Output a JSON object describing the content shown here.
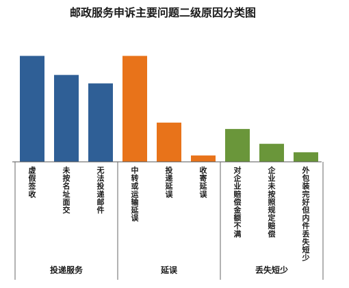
{
  "chart_data": {
    "type": "bar",
    "title": "邮政服务申诉主要问题二级原因分类图",
    "categories": [
      "虚假签收",
      "未按名址面交",
      "无法投递邮件",
      "中转或运输延误",
      "投递延误",
      "收寄延误",
      "对企业赔偿金额不满",
      "企业未按照规定赔偿",
      "外包装完好但内件丢失短少"
    ],
    "groups": [
      {
        "name": "投递服务",
        "color": "#2f5f96",
        "start": 0,
        "count": 3
      },
      {
        "name": "延误",
        "color": "#e8731a",
        "start": 3,
        "count": 3
      },
      {
        "name": "丢失短少",
        "color": "#6a963a",
        "start": 6,
        "count": 3
      }
    ],
    "values": [
      100,
      82,
      74,
      100,
      37,
      6,
      31,
      17,
      9
    ],
    "ylim": [
      0,
      110
    ],
    "y_axis_visible": false,
    "grid": false,
    "legend": "none"
  }
}
